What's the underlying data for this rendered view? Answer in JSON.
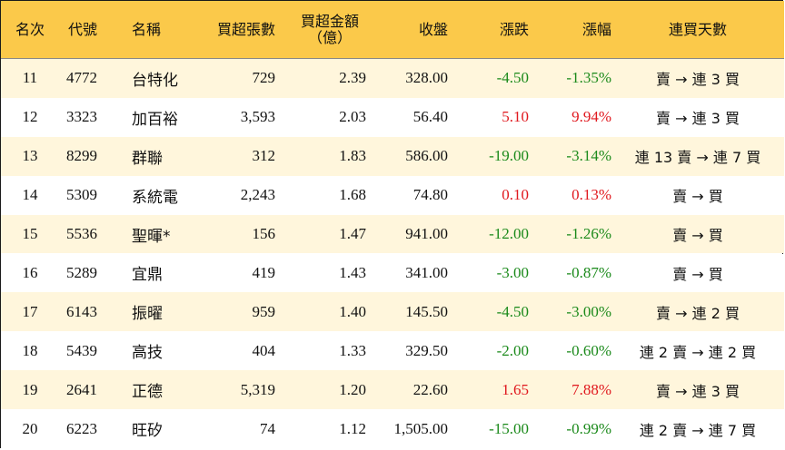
{
  "headers": {
    "rank": "名次",
    "code": "代號",
    "name": "名稱",
    "net_buy_lots": "買超張數",
    "net_buy_amount": "買超金額",
    "net_buy_amount_unit": "（億）",
    "close": "收盤",
    "change": "漲跌",
    "change_pct": "漲幅",
    "consecutive_days": "連買天數"
  },
  "rows": [
    {
      "rank": "11",
      "code": "4772",
      "name": "台特化",
      "lots": "729",
      "amount": "2.39",
      "close": "328.00",
      "change": "-4.50",
      "pct": "-1.35%",
      "trend": "賣 → 連 3 買",
      "dir": "neg"
    },
    {
      "rank": "12",
      "code": "3323",
      "name": "加百裕",
      "lots": "3,593",
      "amount": "2.03",
      "close": "56.40",
      "change": "5.10",
      "pct": "9.94%",
      "trend": "賣 → 連 3 買",
      "dir": "pos"
    },
    {
      "rank": "13",
      "code": "8299",
      "name": "群聯",
      "lots": "312",
      "amount": "1.83",
      "close": "586.00",
      "change": "-19.00",
      "pct": "-3.14%",
      "trend": "連 13 賣 → 連 7 買",
      "dir": "neg"
    },
    {
      "rank": "14",
      "code": "5309",
      "name": "系統電",
      "lots": "2,243",
      "amount": "1.68",
      "close": "74.80",
      "change": "0.10",
      "pct": "0.13%",
      "trend": "賣 → 買",
      "dir": "pos"
    },
    {
      "rank": "15",
      "code": "5536",
      "name": "聖暉*",
      "lots": "156",
      "amount": "1.47",
      "close": "941.00",
      "change": "-12.00",
      "pct": "-1.26%",
      "trend": "賣 → 買",
      "dir": "neg"
    },
    {
      "rank": "16",
      "code": "5289",
      "name": "宜鼎",
      "lots": "419",
      "amount": "1.43",
      "close": "341.00",
      "change": "-3.00",
      "pct": "-0.87%",
      "trend": "賣 → 買",
      "dir": "neg"
    },
    {
      "rank": "17",
      "code": "6143",
      "name": "振曜",
      "lots": "959",
      "amount": "1.40",
      "close": "145.50",
      "change": "-4.50",
      "pct": "-3.00%",
      "trend": "賣 → 連 2 買",
      "dir": "neg"
    },
    {
      "rank": "18",
      "code": "5439",
      "name": "高技",
      "lots": "404",
      "amount": "1.33",
      "close": "329.50",
      "change": "-2.00",
      "pct": "-0.60%",
      "trend": "連 2 賣 → 連 2 買",
      "dir": "neg"
    },
    {
      "rank": "19",
      "code": "2641",
      "name": "正德",
      "lots": "5,319",
      "amount": "1.20",
      "close": "22.60",
      "change": "1.65",
      "pct": "7.88%",
      "trend": "賣 → 連 3 買",
      "dir": "pos"
    },
    {
      "rank": "20",
      "code": "6223",
      "name": "旺矽",
      "lots": "74",
      "amount": "1.12",
      "close": "1,505.00",
      "change": "-15.00",
      "pct": "-0.99%",
      "trend": "連 2 賣 → 連 7 買",
      "dir": "neg"
    }
  ],
  "colors": {
    "header_bg": "#fbc94a",
    "stripe_bg": "#fff6dc",
    "up": "#e0181e",
    "down": "#1b8a1b"
  }
}
